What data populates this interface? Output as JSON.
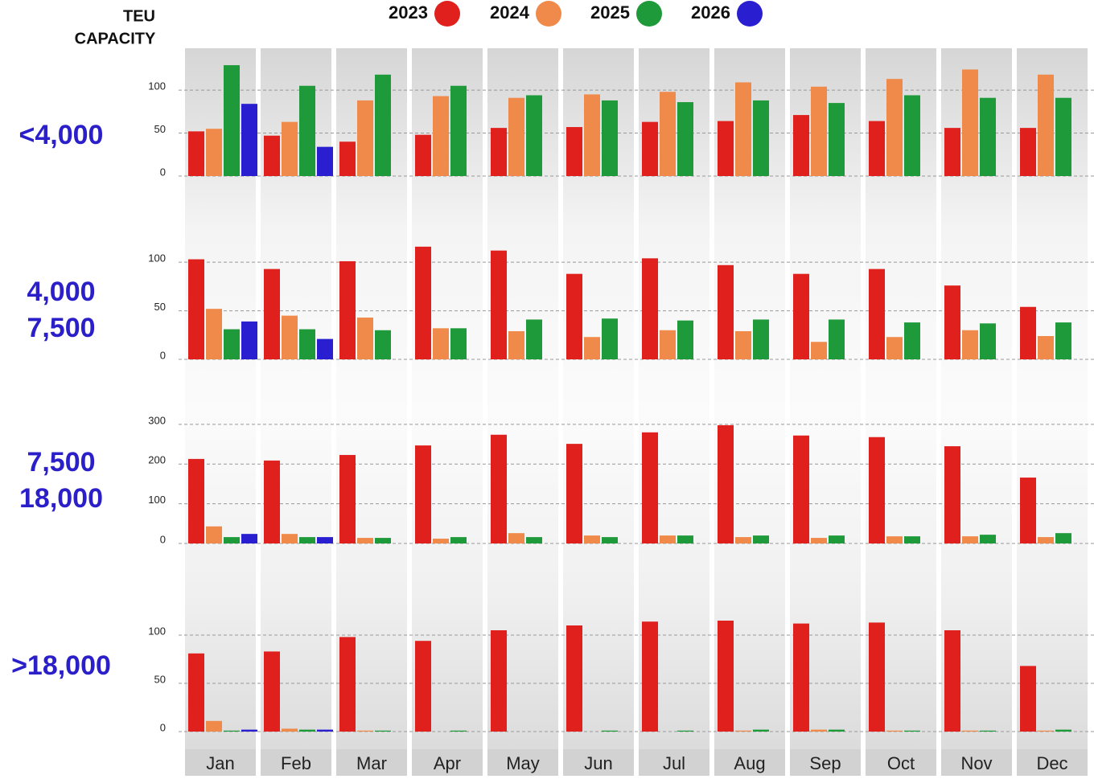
{
  "chart_data": {
    "type": "bar",
    "ylabel": [
      "TEU",
      "CAPACITY"
    ],
    "categories": [
      "Jan",
      "Feb",
      "Mar",
      "Apr",
      "May",
      "Jun",
      "Jul",
      "Aug",
      "Sep",
      "Oct",
      "Nov",
      "Dec"
    ],
    "series": [
      {
        "name": "2023",
        "color": "#e0201c"
      },
      {
        "name": "2024",
        "color": "#f08a4b"
      },
      {
        "name": "2025",
        "color": "#1f9a3a"
      },
      {
        "name": "2026",
        "color": "#2a1fd0"
      }
    ],
    "grid": true,
    "panels": [
      {
        "title": [
          "<4,000"
        ],
        "ylim": [
          0,
          130
        ],
        "yticks": [
          0,
          50,
          100
        ],
        "series": [
          {
            "values": [
              52,
              47,
              40,
              48,
              56,
              57,
              63,
              64,
              71,
              64,
              56,
              56
            ]
          },
          {
            "values": [
              55,
              63,
              88,
              93,
              91,
              95,
              98,
              109,
              104,
              113,
              124,
              118
            ]
          },
          {
            "values": [
              129,
              105,
              118,
              105,
              94,
              88,
              86,
              88,
              85,
              94,
              91,
              91
            ]
          },
          {
            "values": [
              84,
              34,
              null,
              null,
              null,
              null,
              null,
              null,
              null,
              null,
              null,
              null
            ]
          }
        ]
      },
      {
        "title": [
          "4,000",
          "7,500"
        ],
        "ylim": [
          0,
          120
        ],
        "yticks": [
          0,
          50,
          100
        ],
        "series": [
          {
            "values": [
              103,
              93,
              101,
              116,
              112,
              88,
              104,
              97,
              88,
              93,
              76,
              54
            ]
          },
          {
            "values": [
              52,
              45,
              43,
              32,
              29,
              23,
              30,
              29,
              18,
              23,
              30,
              24
            ]
          },
          {
            "values": [
              31,
              31,
              30,
              32,
              41,
              42,
              40,
              41,
              41,
              38,
              37,
              38
            ]
          },
          {
            "values": [
              39,
              21,
              null,
              null,
              null,
              null,
              null,
              null,
              null,
              null,
              null,
              null
            ]
          }
        ]
      },
      {
        "title": [
          "7,500",
          "18,000"
        ],
        "ylim": [
          0,
          310
        ],
        "yticks": [
          0,
          100,
          200,
          300
        ],
        "series": [
          {
            "values": [
              213,
              209,
              223,
              247,
              274,
              251,
              280,
              298,
              272,
              268,
              245,
              166
            ]
          },
          {
            "values": [
              43,
              24,
              14,
              12,
              26,
              20,
              20,
              16,
              14,
              18,
              18,
              16
            ]
          },
          {
            "values": [
              16,
              16,
              14,
              16,
              16,
              16,
              20,
              20,
              20,
              18,
              22,
              26
            ]
          },
          {
            "values": [
              24,
              16,
              null,
              null,
              null,
              null,
              null,
              null,
              null,
              null,
              null,
              null
            ]
          }
        ]
      },
      {
        "title": [
          ">18,000"
        ],
        "ylim": [
          0,
          140
        ],
        "yticks": [
          0,
          50,
          100
        ],
        "series": [
          {
            "values": [
              81,
              83,
              98,
              94,
              105,
              110,
              114,
              115,
              112,
              113,
              105,
              68
            ]
          },
          {
            "values": [
              11,
              3,
              1,
              0,
              0,
              0,
              0,
              1,
              2,
              1,
              1,
              1
            ]
          },
          {
            "values": [
              1,
              2,
              1,
              1,
              0,
              1,
              1,
              2,
              2,
              1,
              1,
              2
            ]
          },
          {
            "values": [
              2,
              2,
              null,
              null,
              null,
              null,
              null,
              null,
              null,
              null,
              null,
              null
            ]
          }
        ]
      }
    ]
  }
}
